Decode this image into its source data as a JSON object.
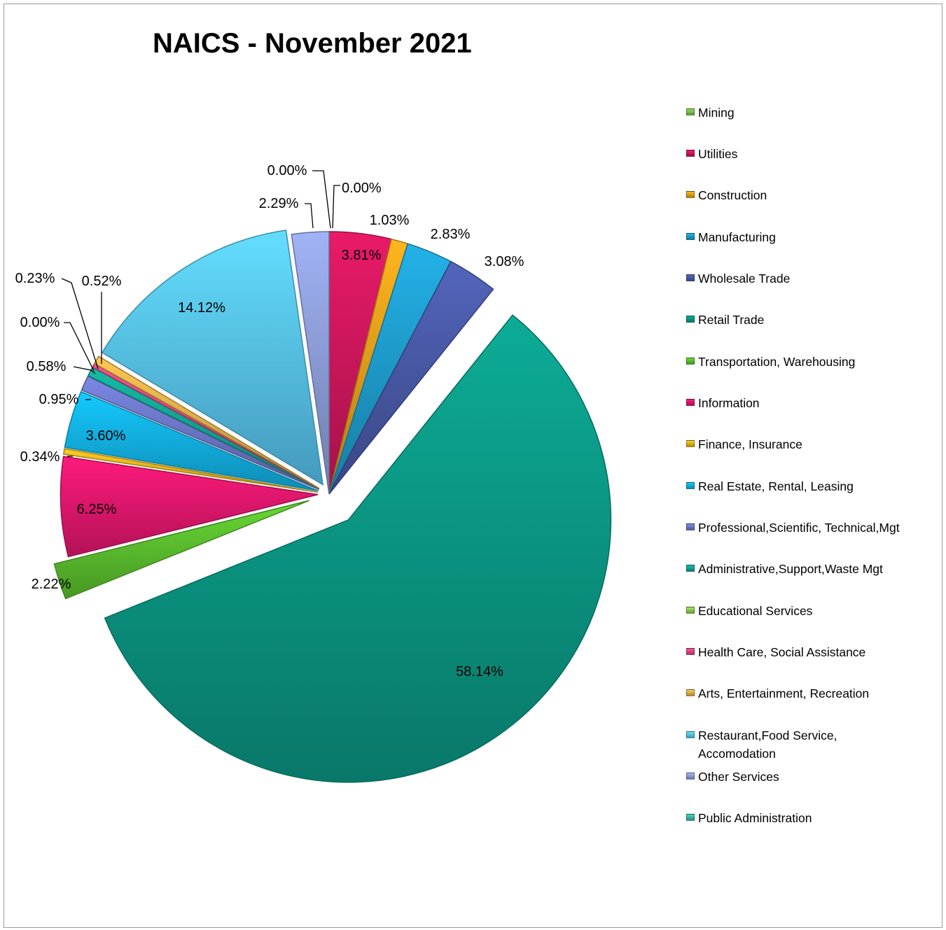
{
  "chart_data": {
    "type": "pie",
    "title": "NAICS - November 2021",
    "legend_position": "right",
    "slices": [
      {
        "name": "Mining",
        "value": 0.0,
        "label": "0.00%",
        "color": "#7fc24a"
      },
      {
        "name": "Utilities",
        "value": 3.81,
        "label": "3.81%",
        "color": "#d1175e"
      },
      {
        "name": "Construction",
        "value": 1.03,
        "label": "1.03%",
        "color": "#e7a21a"
      },
      {
        "name": "Manufacturing",
        "value": 2.83,
        "label": "2.83%",
        "color": "#1f9fd0"
      },
      {
        "name": "Wholesale Trade",
        "value": 3.08,
        "label": "3.08%",
        "color": "#4a5aa8"
      },
      {
        "name": "Retail Trade",
        "value": 58.14,
        "label": "58.14%",
        "color": "#0b9a86"
      },
      {
        "name": "Transportation, Warehousing",
        "value": 2.22,
        "label": "2.22%",
        "color": "#5cc22e"
      },
      {
        "name": "Information",
        "value": 6.25,
        "label": "6.25%",
        "color": "#e5176f"
      },
      {
        "name": "Finance, Insurance",
        "value": 0.34,
        "label": "0.34%",
        "color": "#efb81d"
      },
      {
        "name": "Real Estate, Rental, Leasing",
        "value": 3.6,
        "label": "3.60%",
        "color": "#12b4e8"
      },
      {
        "name": "Professional,Scientific, Technical,Mgt",
        "value": 0.95,
        "label": "0.95%",
        "color": "#6e79cc"
      },
      {
        "name": "Administrative,Support,Waste Mgt",
        "value": 0.58,
        "label": "0.58%",
        "color": "#14a896"
      },
      {
        "name": "Educational Services",
        "value": 0.0,
        "label": "0.00%",
        "color": "#8ccf55"
      },
      {
        "name": "Health Care, Social Assistance",
        "value": 0.23,
        "label": "0.23%",
        "color": "#e24a82"
      },
      {
        "name": "Arts, Entertainment, Recreation",
        "value": 0.52,
        "label": "0.52%",
        "color": "#e8b34b"
      },
      {
        "name": "Restaurant,Food Service, Accomodation",
        "value": 14.12,
        "label": "14.12%",
        "color": "#58c6f2"
      },
      {
        "name": "Other Services",
        "value": 2.29,
        "label": "2.29%",
        "color": "#8fa0dc"
      },
      {
        "name": "Public Administration",
        "value": 0.0,
        "label": "0.00%",
        "color": "#3dbcb0"
      }
    ]
  }
}
